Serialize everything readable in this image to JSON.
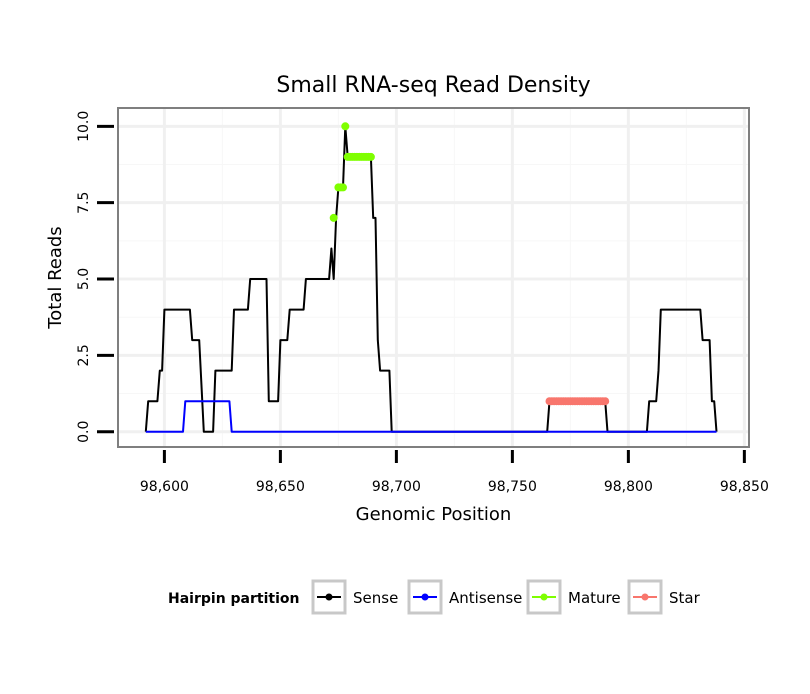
{
  "chart_data": {
    "type": "line",
    "title": "Small RNA-seq Read Density",
    "xlabel": "Genomic Position",
    "ylabel": "Total Reads",
    "xlim": [
      98580,
      98852
    ],
    "ylim": [
      -0.5,
      10.6
    ],
    "x_ticks": [
      98600,
      98650,
      98700,
      98750,
      98800,
      98850
    ],
    "x_tick_labels": [
      "98,600",
      "98,650",
      "98,700",
      "98,750",
      "98,800",
      "98,850"
    ],
    "y_ticks": [
      0,
      2.5,
      5,
      7.5,
      10
    ],
    "y_tick_labels": [
      "0.0",
      "2.5",
      "5.0",
      "7.5",
      "10.0"
    ],
    "grid": true,
    "legend": {
      "title": "Hairpin partition",
      "position": "bottom",
      "entries": [
        "Sense",
        "Antisense",
        "Mature",
        "Star"
      ]
    },
    "series": [
      {
        "name": "Sense",
        "color": "#000000",
        "style": "line",
        "points": [
          [
            98592,
            0
          ],
          [
            98593,
            1
          ],
          [
            98597,
            1
          ],
          [
            98598,
            2
          ],
          [
            98599,
            2
          ],
          [
            98600,
            4
          ],
          [
            98611,
            4
          ],
          [
            98612,
            3
          ],
          [
            98615,
            3
          ],
          [
            98617,
            0
          ],
          [
            98621,
            0
          ],
          [
            98622,
            2
          ],
          [
            98629,
            2
          ],
          [
            98630,
            4
          ],
          [
            98636,
            4
          ],
          [
            98637,
            5
          ],
          [
            98644,
            5
          ],
          [
            98645,
            1
          ],
          [
            98649,
            1
          ],
          [
            98650,
            3
          ],
          [
            98653,
            3
          ],
          [
            98654,
            4
          ],
          [
            98660,
            4
          ],
          [
            98661,
            5
          ],
          [
            98671,
            5
          ],
          [
            98672,
            6
          ],
          [
            98673,
            5
          ],
          [
            98674,
            7
          ],
          [
            98675,
            8
          ],
          [
            98677,
            8
          ],
          [
            98678,
            10
          ],
          [
            98679,
            9
          ],
          [
            98689,
            9
          ],
          [
            98690,
            7
          ],
          [
            98691,
            7
          ],
          [
            98692,
            3
          ],
          [
            98693,
            2
          ],
          [
            98697,
            2
          ],
          [
            98698,
            0
          ],
          [
            98765,
            0
          ],
          [
            98766,
            1
          ],
          [
            98790,
            1
          ],
          [
            98791,
            0
          ],
          [
            98808,
            0
          ],
          [
            98809,
            1
          ],
          [
            98812,
            1
          ],
          [
            98813,
            2
          ],
          [
            98814,
            4
          ],
          [
            98831,
            4
          ],
          [
            98832,
            3
          ],
          [
            98835,
            3
          ],
          [
            98836,
            1
          ],
          [
            98837,
            1
          ],
          [
            98838,
            0
          ]
        ]
      },
      {
        "name": "Antisense",
        "color": "#0000ff",
        "style": "line",
        "points": [
          [
            98592,
            0
          ],
          [
            98608,
            0
          ],
          [
            98609,
            1
          ],
          [
            98628,
            1
          ],
          [
            98629,
            0
          ],
          [
            98838,
            0
          ]
        ]
      },
      {
        "name": "Mature",
        "color": "#7fff00",
        "style": "points",
        "points": [
          [
            98673,
            7
          ],
          [
            98675,
            8
          ],
          [
            98676,
            8
          ],
          [
            98677,
            8
          ],
          [
            98678,
            10
          ],
          [
            98679,
            9
          ],
          [
            98680,
            9
          ],
          [
            98681,
            9
          ],
          [
            98682,
            9
          ],
          [
            98683,
            9
          ],
          [
            98684,
            9
          ],
          [
            98685,
            9
          ],
          [
            98686,
            9
          ],
          [
            98687,
            9
          ],
          [
            98688,
            9
          ],
          [
            98689,
            9
          ]
        ]
      },
      {
        "name": "Star",
        "color": "#f8766d",
        "style": "points",
        "points": [
          [
            98766,
            1
          ],
          [
            98767,
            1
          ],
          [
            98768,
            1
          ],
          [
            98769,
            1
          ],
          [
            98770,
            1
          ],
          [
            98771,
            1
          ],
          [
            98772,
            1
          ],
          [
            98773,
            1
          ],
          [
            98774,
            1
          ],
          [
            98775,
            1
          ],
          [
            98776,
            1
          ],
          [
            98777,
            1
          ],
          [
            98778,
            1
          ],
          [
            98779,
            1
          ],
          [
            98780,
            1
          ],
          [
            98781,
            1
          ],
          [
            98782,
            1
          ],
          [
            98783,
            1
          ],
          [
            98784,
            1
          ],
          [
            98785,
            1
          ],
          [
            98786,
            1
          ],
          [
            98787,
            1
          ],
          [
            98788,
            1
          ],
          [
            98789,
            1
          ],
          [
            98790,
            1
          ]
        ]
      }
    ]
  }
}
